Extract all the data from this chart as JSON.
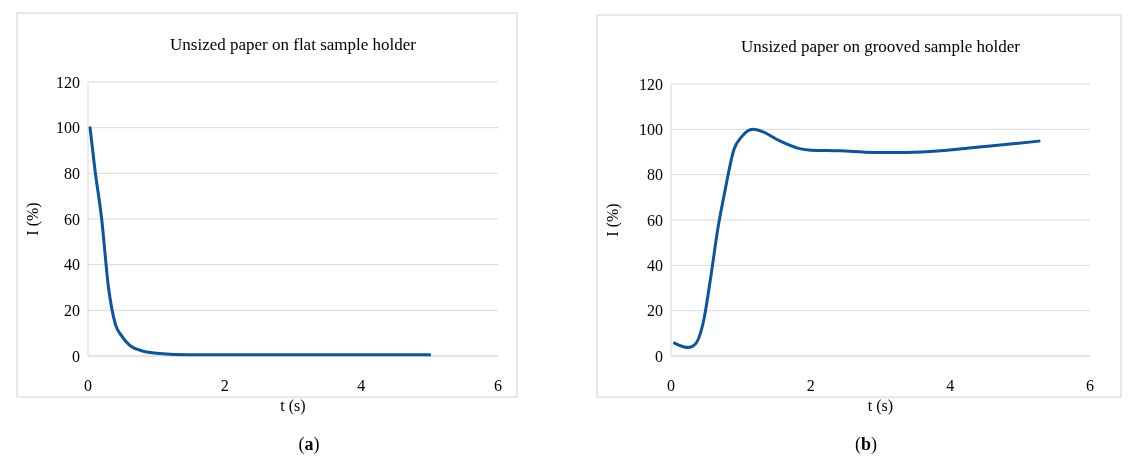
{
  "chart_data": [
    {
      "type": "line",
      "title": "Unsized paper on flat sample holder",
      "xlabel": "t (s)",
      "ylabel": "I (%)",
      "annotations": [
        "(a)"
      ],
      "xlim": [
        0,
        6
      ],
      "xticks": [
        0,
        2,
        4,
        6
      ],
      "ylim": [
        0,
        120
      ],
      "yticks": [
        0,
        20,
        40,
        60,
        80,
        100,
        120
      ],
      "grid": "y",
      "series": [
        {
          "color": "#0b559f",
          "x": [
            0.03,
            0.1,
            0.2,
            0.3,
            0.4,
            0.5,
            0.6,
            0.8,
            1.0,
            1.5,
            2,
            3,
            4,
            5.0
          ],
          "values": [
            100,
            82,
            60,
            30,
            14,
            8.5,
            5,
            2.2,
            1.2,
            0.5,
            0.5,
            0.5,
            0.5,
            0.5
          ]
        }
      ]
    },
    {
      "type": "line",
      "title": "Unsized paper on grooved sample holder",
      "xlabel": "t (s)",
      "ylabel": "I (%)",
      "annotations": [
        "(b)"
      ],
      "xlim": [
        0,
        6
      ],
      "xticks": [
        0,
        2,
        4,
        6
      ],
      "ylim": [
        0,
        120
      ],
      "yticks": [
        0,
        20,
        40,
        60,
        80,
        100,
        120
      ],
      "grid": "y",
      "series": [
        {
          "color": "#0b559f",
          "x": [
            0.05,
            0.25,
            0.35,
            0.47,
            0.57,
            0.67,
            0.78,
            0.9,
            1.02,
            1.17,
            1.31,
            1.55,
            1.84,
            2,
            2.42,
            2.9,
            3.38,
            3.86,
            4.34,
            4.82,
            5.27
          ],
          "values": [
            5.7,
            3.7,
            5.3,
            16,
            35,
            56,
            74,
            91,
            97,
            100,
            99,
            95,
            91.5,
            90.8,
            90.5,
            89.8,
            89.8,
            90.5,
            92,
            93.4,
            94.8
          ]
        }
      ]
    }
  ]
}
